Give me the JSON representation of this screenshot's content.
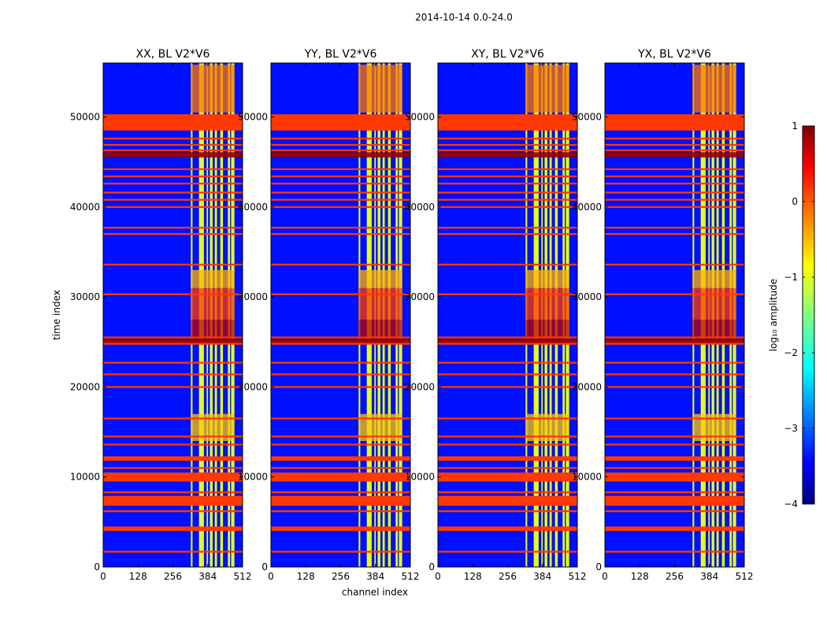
{
  "chart_data": {
    "type": "heatmap",
    "title": "2014-10-14 0.0-24.0",
    "xlabel": "channel index",
    "ylabel": "time index",
    "xlim": [
      0,
      512
    ],
    "ylim": [
      0,
      56000
    ],
    "xticks": [
      "0",
      "128",
      "256",
      "384",
      "512"
    ],
    "yticks": [
      "0",
      "10000",
      "20000",
      "30000",
      "40000",
      "50000"
    ],
    "xtick_values": [
      0,
      128,
      256,
      384,
      512
    ],
    "ytick_values": [
      0,
      10000,
      20000,
      30000,
      40000,
      50000
    ],
    "panels": [
      {
        "name": "xx",
        "title": "XX, BL V2*V6"
      },
      {
        "name": "yy",
        "title": "YY, BL V2*V6"
      },
      {
        "name": "xy",
        "title": "XY, BL V2*V6"
      },
      {
        "name": "yx",
        "title": "YX, BL V2*V6"
      }
    ],
    "colorbar": {
      "label": "log₁₀ amplitude",
      "range": [
        -4,
        1
      ],
      "ticks": [
        "1",
        "0",
        "−1",
        "−2",
        "−3",
        "−4"
      ],
      "tick_values": [
        1,
        0,
        -1,
        -2,
        -3,
        -4
      ],
      "colormap": "jet"
    },
    "background_level": -3.3,
    "flagged_level": 0.1,
    "flagged_time_bands": [
      [
        50300,
        48500
      ],
      [
        47700,
        47500
      ],
      [
        47000,
        46800
      ],
      [
        46400,
        46200
      ],
      [
        45900,
        45700
      ],
      [
        44300,
        44100
      ],
      [
        43500,
        43300
      ],
      [
        42700,
        42500
      ],
      [
        41700,
        41500
      ],
      [
        40900,
        40700
      ],
      [
        40100,
        39900
      ],
      [
        37800,
        37600
      ],
      [
        37100,
        36900
      ],
      [
        33700,
        33500
      ],
      [
        30400,
        30200
      ],
      [
        25600,
        25400
      ],
      [
        25200,
        24700
      ],
      [
        22800,
        22600
      ],
      [
        21500,
        21300
      ],
      [
        20100,
        19900
      ],
      [
        16600,
        16400
      ],
      [
        14600,
        14400
      ],
      [
        13700,
        13500
      ],
      [
        12300,
        11800
      ],
      [
        11100,
        10900
      ],
      [
        10500,
        9500
      ],
      [
        8400,
        8200
      ],
      [
        7900,
        6800
      ],
      [
        6300,
        6100
      ],
      [
        4500,
        4000
      ],
      [
        1800,
        1600
      ]
    ],
    "dark_time_bands": [
      [
        46100,
        45500
      ],
      [
        25400,
        24900
      ]
    ],
    "bright_channel_ranges": [
      [
        322,
        328
      ],
      [
        352,
        370
      ],
      [
        380,
        385
      ],
      [
        392,
        402
      ],
      [
        410,
        418
      ],
      [
        430,
        440
      ],
      [
        458,
        466
      ],
      [
        470,
        482
      ]
    ],
    "rfi_time_ranges": [
      {
        "t0": 25000,
        "t1": 27500,
        "level": 0.7
      },
      {
        "t0": 27500,
        "t1": 31000,
        "level": 0.1
      },
      {
        "t0": 31000,
        "t1": 33000,
        "level": -0.5
      },
      {
        "t0": 50500,
        "t1": 55800,
        "level": -0.2
      },
      {
        "t0": 14000,
        "t1": 17000,
        "level": -0.6
      }
    ],
    "axes": {
      "grid": false,
      "legend": "none"
    }
  }
}
